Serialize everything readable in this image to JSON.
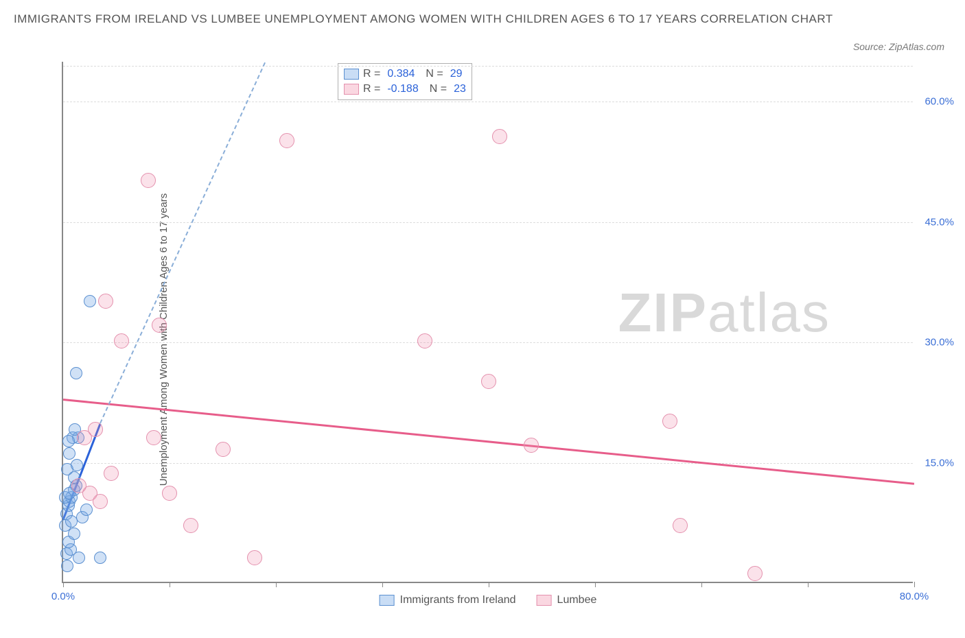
{
  "title": "IMMIGRANTS FROM IRELAND VS LUMBEE UNEMPLOYMENT AMONG WOMEN WITH CHILDREN AGES 6 TO 17 YEARS CORRELATION CHART",
  "source": "Source: ZipAtlas.com",
  "y_axis_label": "Unemployment Among Women with Children Ages 6 to 17 years",
  "watermark_bold": "ZIP",
  "watermark_light": "atlas",
  "chart": {
    "type": "scatter",
    "xlim": [
      0,
      80
    ],
    "ylim": [
      0,
      65
    ],
    "x_ticks": [
      0,
      10,
      20,
      30,
      40,
      50,
      60,
      70,
      80
    ],
    "x_tick_labels": {
      "0": "0.0%",
      "80": "80.0%"
    },
    "y_grid": [
      15,
      30,
      45,
      60
    ],
    "y_tick_labels": {
      "15": "15.0%",
      "30": "30.0%",
      "45": "45.0%",
      "60": "60.0%"
    },
    "background_color": "#ffffff",
    "grid_color": "#dcdcdc",
    "axis_color": "#888888",
    "series": [
      {
        "name": "Immigrants from Ireland",
        "color_fill": "rgba(120,170,230,0.35)",
        "color_stroke": "#5a8fd0",
        "marker_size": 18,
        "R": "0.384",
        "N": "29",
        "trend": {
          "x1": 0,
          "y1": 8,
          "x2": 3.5,
          "y2": 20,
          "solid_color": "#2b62d9",
          "dash_beyond": true,
          "dash_x2": 19,
          "dash_y2": 75
        },
        "points": [
          [
            0.2,
            7.0
          ],
          [
            0.3,
            8.5
          ],
          [
            0.5,
            9.5
          ],
          [
            0.6,
            10.0
          ],
          [
            0.8,
            10.5
          ],
          [
            1.0,
            11.5
          ],
          [
            1.2,
            12.0
          ],
          [
            1.4,
            18.0
          ],
          [
            0.4,
            14.0
          ],
          [
            0.6,
            16.0
          ],
          [
            0.9,
            18.0
          ],
          [
            1.1,
            19.0
          ],
          [
            2.5,
            35.0
          ],
          [
            0.3,
            3.5
          ],
          [
            0.7,
            4.0
          ],
          [
            1.5,
            3.0
          ],
          [
            0.5,
            5.0
          ],
          [
            1.0,
            6.0
          ],
          [
            1.8,
            8.0
          ],
          [
            2.2,
            9.0
          ],
          [
            3.5,
            3.0
          ],
          [
            1.2,
            26.0
          ],
          [
            0.4,
            2.0
          ],
          [
            0.2,
            10.5
          ],
          [
            0.6,
            11.0
          ],
          [
            0.8,
            7.5
          ],
          [
            1.0,
            13.0
          ],
          [
            1.3,
            14.5
          ],
          [
            0.5,
            17.5
          ]
        ]
      },
      {
        "name": "Lumbee",
        "color_fill": "rgba(240,140,170,0.25)",
        "color_stroke": "#e490ad",
        "marker_size": 22,
        "R": "-0.188",
        "N": "23",
        "trend": {
          "x1": 0,
          "y1": 23,
          "x2": 80,
          "y2": 12.5,
          "solid_color": "#e75d8a"
        },
        "points": [
          [
            2.0,
            18.0
          ],
          [
            3.0,
            19.0
          ],
          [
            5.5,
            30.0
          ],
          [
            4.0,
            35.0
          ],
          [
            8.0,
            50.0
          ],
          [
            21.0,
            55.0
          ],
          [
            9.0,
            32.0
          ],
          [
            8.5,
            18.0
          ],
          [
            15.0,
            16.5
          ],
          [
            10.0,
            11.0
          ],
          [
            12.0,
            7.0
          ],
          [
            18.0,
            3.0
          ],
          [
            34.0,
            30.0
          ],
          [
            40.0,
            25.0
          ],
          [
            44.0,
            17.0
          ],
          [
            57.0,
            20.0
          ],
          [
            58.0,
            7.0
          ],
          [
            65.0,
            1.0
          ],
          [
            1.5,
            12.0
          ],
          [
            2.5,
            11.0
          ],
          [
            3.5,
            10.0
          ],
          [
            41.0,
            55.5
          ],
          [
            4.5,
            13.5
          ]
        ]
      }
    ],
    "legend_top": {
      "rows": [
        {
          "swatch": "blue",
          "r_label": "R =",
          "r_val": "0.384",
          "n_label": "N =",
          "n_val": "29"
        },
        {
          "swatch": "pink",
          "r_label": "R =",
          "r_val": "-0.188",
          "n_label": "N =",
          "n_val": "23"
        }
      ]
    },
    "legend_bottom": [
      {
        "swatch": "blue",
        "label": "Immigrants from Ireland"
      },
      {
        "swatch": "pink",
        "label": "Lumbee"
      }
    ]
  }
}
